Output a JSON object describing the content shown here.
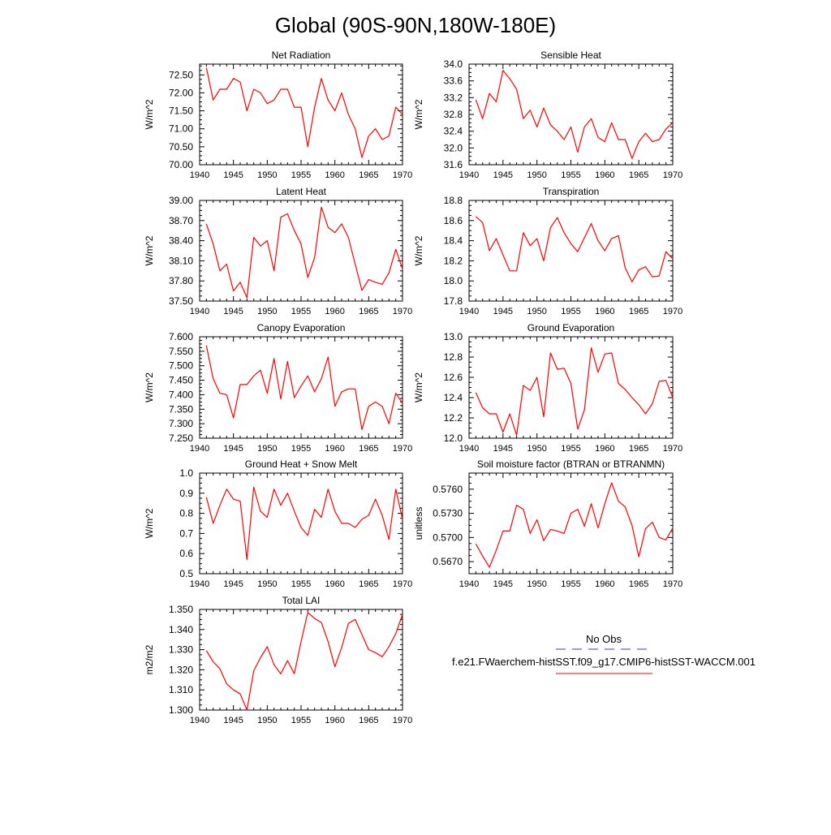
{
  "page_title": "Global (90S-90N,180W-180E)",
  "legend": {
    "obs_label": "No Obs",
    "obs_color": "#3b3bb5",
    "model_label": "f.e21.FWaerchem-histSST.f09_g17.CMIP6-histSST-WACCM.001",
    "model_color": "#ff0000"
  },
  "chart_data": [
    {
      "type": "line",
      "title": "Net Radiation",
      "ylabel": "W/m^2",
      "xlim": [
        1940,
        1970
      ],
      "ylim": [
        70.0,
        72.8
      ],
      "xticks": [
        1940,
        1945,
        1950,
        1955,
        1960,
        1965,
        1970
      ],
      "yticks": [
        "70.00",
        "70.50",
        "71.00",
        "71.50",
        "72.00",
        "72.50"
      ],
      "x": [
        1941,
        1942,
        1943,
        1944,
        1945,
        1946,
        1947,
        1948,
        1949,
        1950,
        1951,
        1952,
        1953,
        1954,
        1955,
        1956,
        1957,
        1958,
        1959,
        1960,
        1961,
        1962,
        1963,
        1964,
        1965,
        1966,
        1967,
        1968,
        1969,
        1970
      ],
      "series": [
        {
          "values": [
            72.7,
            71.8,
            72.1,
            72.1,
            72.4,
            72.3,
            71.5,
            72.1,
            72.0,
            71.7,
            71.8,
            72.1,
            72.1,
            71.6,
            71.6,
            70.5,
            71.6,
            72.4,
            71.8,
            71.5,
            72.0,
            71.4,
            71.0,
            70.2,
            70.8,
            71.0,
            70.7,
            70.8,
            71.6,
            71.4
          ],
          "color": "#ff0000"
        }
      ]
    },
    {
      "type": "line",
      "title": "Sensible Heat",
      "ylabel": "W/m^2",
      "xlim": [
        1940,
        1970
      ],
      "ylim": [
        31.6,
        34.0
      ],
      "xticks": [
        1940,
        1945,
        1950,
        1955,
        1960,
        1965,
        1970
      ],
      "yticks": [
        "31.6",
        "32.0",
        "32.4",
        "32.8",
        "33.2",
        "33.6",
        "34.0"
      ],
      "x": [
        1941,
        1942,
        1943,
        1944,
        1945,
        1946,
        1947,
        1948,
        1949,
        1950,
        1951,
        1952,
        1953,
        1954,
        1955,
        1956,
        1957,
        1958,
        1959,
        1960,
        1961,
        1962,
        1963,
        1964,
        1965,
        1966,
        1967,
        1968,
        1969,
        1970
      ],
      "series": [
        {
          "values": [
            33.15,
            32.7,
            33.3,
            33.1,
            33.85,
            33.65,
            33.4,
            32.7,
            32.9,
            32.5,
            32.95,
            32.55,
            32.4,
            32.2,
            32.5,
            31.9,
            32.5,
            32.7,
            32.25,
            32.15,
            32.6,
            32.2,
            32.2,
            31.75,
            32.15,
            32.35,
            32.15,
            32.2,
            32.45,
            32.6
          ],
          "color": "#ff0000"
        }
      ]
    },
    {
      "type": "line",
      "title": "Latent Heat",
      "ylabel": "W/m^2",
      "xlim": [
        1940,
        1970
      ],
      "ylim": [
        37.5,
        39.0
      ],
      "xticks": [
        1940,
        1945,
        1950,
        1955,
        1960,
        1965,
        1970
      ],
      "yticks": [
        "37.50",
        "37.80",
        "38.10",
        "38.40",
        "38.70",
        "39.00"
      ],
      "x": [
        1941,
        1942,
        1943,
        1944,
        1945,
        1946,
        1947,
        1948,
        1949,
        1950,
        1951,
        1952,
        1953,
        1954,
        1955,
        1956,
        1957,
        1958,
        1959,
        1960,
        1961,
        1962,
        1963,
        1964,
        1965,
        1966,
        1967,
        1968,
        1969,
        1970
      ],
      "series": [
        {
          "values": [
            38.65,
            38.35,
            37.95,
            38.05,
            37.65,
            37.78,
            37.55,
            38.45,
            38.32,
            38.4,
            37.95,
            38.75,
            38.8,
            38.55,
            38.35,
            37.85,
            38.15,
            38.9,
            38.6,
            38.52,
            38.65,
            38.45,
            38.05,
            37.66,
            37.82,
            37.78,
            37.75,
            37.92,
            38.27,
            37.98
          ],
          "color": "#ff0000"
        }
      ]
    },
    {
      "type": "line",
      "title": "Transpiration",
      "ylabel": "W/m^2",
      "xlim": [
        1940,
        1970
      ],
      "ylim": [
        17.8,
        18.8
      ],
      "xticks": [
        1940,
        1945,
        1950,
        1955,
        1960,
        1965,
        1970
      ],
      "yticks": [
        "17.8",
        "18.0",
        "18.2",
        "18.4",
        "18.6",
        "18.8"
      ],
      "x": [
        1941,
        1942,
        1943,
        1944,
        1945,
        1946,
        1947,
        1948,
        1949,
        1950,
        1951,
        1952,
        1953,
        1954,
        1955,
        1956,
        1957,
        1958,
        1959,
        1960,
        1961,
        1962,
        1963,
        1964,
        1965,
        1966,
        1967,
        1968,
        1969,
        1970
      ],
      "series": [
        {
          "values": [
            18.64,
            18.58,
            18.3,
            18.42,
            18.26,
            18.1,
            18.1,
            18.48,
            18.35,
            18.42,
            18.2,
            18.53,
            18.63,
            18.48,
            18.37,
            18.29,
            18.43,
            18.57,
            18.4,
            18.3,
            18.42,
            18.45,
            18.13,
            17.99,
            18.11,
            18.14,
            18.04,
            18.05,
            18.29,
            18.22
          ],
          "color": "#ff0000"
        }
      ]
    },
    {
      "type": "line",
      "title": "Canopy Evaporation",
      "ylabel": "W/m^2",
      "xlim": [
        1940,
        1970
      ],
      "ylim": [
        7.25,
        7.6
      ],
      "xticks": [
        1940,
        1945,
        1950,
        1955,
        1960,
        1965,
        1970
      ],
      "yticks": [
        "7.250",
        "7.300",
        "7.350",
        "7.400",
        "7.450",
        "7.500",
        "7.550",
        "7.600"
      ],
      "x": [
        1941,
        1942,
        1943,
        1944,
        1945,
        1946,
        1947,
        1948,
        1949,
        1950,
        1951,
        1952,
        1953,
        1954,
        1955,
        1956,
        1957,
        1958,
        1959,
        1960,
        1961,
        1962,
        1963,
        1964,
        1965,
        1966,
        1967,
        1968,
        1969,
        1970
      ],
      "series": [
        {
          "values": [
            7.57,
            7.455,
            7.405,
            7.4,
            7.32,
            7.435,
            7.435,
            7.465,
            7.485,
            7.405,
            7.525,
            7.385,
            7.515,
            7.39,
            7.43,
            7.465,
            7.41,
            7.455,
            7.53,
            7.36,
            7.41,
            7.42,
            7.42,
            7.28,
            7.36,
            7.375,
            7.36,
            7.3,
            7.405,
            7.37
          ],
          "color": "#ff0000"
        }
      ]
    },
    {
      "type": "line",
      "title": "Ground Evaporation",
      "ylabel": "W/m^2",
      "xlim": [
        1940,
        1970
      ],
      "ylim": [
        12.0,
        13.0
      ],
      "xticks": [
        1940,
        1945,
        1950,
        1955,
        1960,
        1965,
        1970
      ],
      "yticks": [
        "12.0",
        "12.2",
        "12.4",
        "12.6",
        "12.8",
        "13.0"
      ],
      "x": [
        1941,
        1942,
        1943,
        1944,
        1945,
        1946,
        1947,
        1948,
        1949,
        1950,
        1951,
        1952,
        1953,
        1954,
        1955,
        1956,
        1957,
        1958,
        1959,
        1960,
        1961,
        1962,
        1963,
        1964,
        1965,
        1966,
        1967,
        1968,
        1969,
        1970
      ],
      "series": [
        {
          "values": [
            12.45,
            12.3,
            12.24,
            12.24,
            12.06,
            12.24,
            12.03,
            12.52,
            12.47,
            12.6,
            12.21,
            12.84,
            12.68,
            12.69,
            12.54,
            12.09,
            12.28,
            12.89,
            12.65,
            12.83,
            12.84,
            12.54,
            12.48,
            12.4,
            12.33,
            12.24,
            12.34,
            12.56,
            12.57,
            12.4
          ],
          "color": "#ff0000"
        }
      ]
    },
    {
      "type": "line",
      "title": "Ground Heat + Snow Melt",
      "ylabel": "W/m^2",
      "xlim": [
        1940,
        1970
      ],
      "ylim": [
        0.5,
        1.0
      ],
      "xticks": [
        1940,
        1945,
        1950,
        1955,
        1960,
        1965,
        1970
      ],
      "yticks": [
        "0.5",
        "0.6",
        "0.7",
        "0.8",
        "0.9",
        "1.0"
      ],
      "x": [
        1941,
        1942,
        1943,
        1944,
        1945,
        1946,
        1947,
        1948,
        1949,
        1950,
        1951,
        1952,
        1953,
        1954,
        1955,
        1956,
        1957,
        1958,
        1959,
        1960,
        1961,
        1962,
        1963,
        1964,
        1965,
        1966,
        1967,
        1968,
        1969,
        1970
      ],
      "series": [
        {
          "values": [
            0.88,
            0.75,
            0.84,
            0.92,
            0.87,
            0.86,
            0.57,
            0.93,
            0.81,
            0.78,
            0.92,
            0.84,
            0.9,
            0.81,
            0.73,
            0.69,
            0.82,
            0.78,
            0.92,
            0.81,
            0.75,
            0.75,
            0.73,
            0.77,
            0.79,
            0.87,
            0.79,
            0.67,
            0.92,
            0.77
          ],
          "color": "#ff0000"
        }
      ]
    },
    {
      "type": "line",
      "title": "Soil moisture factor (BTRAN or BTRANMN)",
      "ylabel": "unitless",
      "xlim": [
        1940,
        1970
      ],
      "ylim": [
        0.5655,
        0.578
      ],
      "xticks": [
        1940,
        1945,
        1950,
        1955,
        1960,
        1965,
        1970
      ],
      "yticks": [
        "0.5670",
        "0.5700",
        "0.5730",
        "0.5760"
      ],
      "x": [
        1941,
        1942,
        1943,
        1944,
        1945,
        1946,
        1947,
        1948,
        1949,
        1950,
        1951,
        1952,
        1953,
        1954,
        1955,
        1956,
        1957,
        1958,
        1959,
        1960,
        1961,
        1962,
        1963,
        1964,
        1965,
        1966,
        1967,
        1968,
        1969,
        1970
      ],
      "series": [
        {
          "values": [
            0.5692,
            0.5677,
            0.5663,
            0.5684,
            0.5708,
            0.5708,
            0.574,
            0.5735,
            0.5705,
            0.5722,
            0.5696,
            0.571,
            0.5708,
            0.5705,
            0.573,
            0.5735,
            0.5714,
            0.5742,
            0.5712,
            0.5742,
            0.5768,
            0.5745,
            0.5738,
            0.5715,
            0.5676,
            0.5711,
            0.5719,
            0.57,
            0.5697,
            0.5712
          ],
          "color": "#ff0000"
        }
      ]
    },
    {
      "type": "line",
      "title": "Total LAI",
      "ylabel": "m2/m2",
      "xlim": [
        1940,
        1970
      ],
      "ylim": [
        1.3,
        1.35
      ],
      "xticks": [
        1940,
        1945,
        1950,
        1955,
        1960,
        1965,
        1970
      ],
      "yticks": [
        "1.300",
        "1.310",
        "1.320",
        "1.330",
        "1.340",
        "1.350"
      ],
      "x": [
        1941,
        1942,
        1943,
        1944,
        1945,
        1946,
        1947,
        1948,
        1949,
        1950,
        1951,
        1952,
        1953,
        1954,
        1955,
        1956,
        1957,
        1958,
        1959,
        1960,
        1961,
        1962,
        1963,
        1964,
        1965,
        1966,
        1967,
        1968,
        1969,
        1970
      ],
      "series": [
        {
          "values": [
            1.3295,
            1.324,
            1.3205,
            1.313,
            1.31,
            1.308,
            1.3,
            1.3195,
            1.326,
            1.3315,
            1.3225,
            1.318,
            1.3245,
            1.318,
            1.334,
            1.3485,
            1.3455,
            1.3435,
            1.334,
            1.3215,
            1.331,
            1.343,
            1.345,
            1.3375,
            1.33,
            1.3285,
            1.3265,
            1.3315,
            1.338,
            1.3475
          ],
          "color": "#ff0000"
        }
      ]
    }
  ]
}
